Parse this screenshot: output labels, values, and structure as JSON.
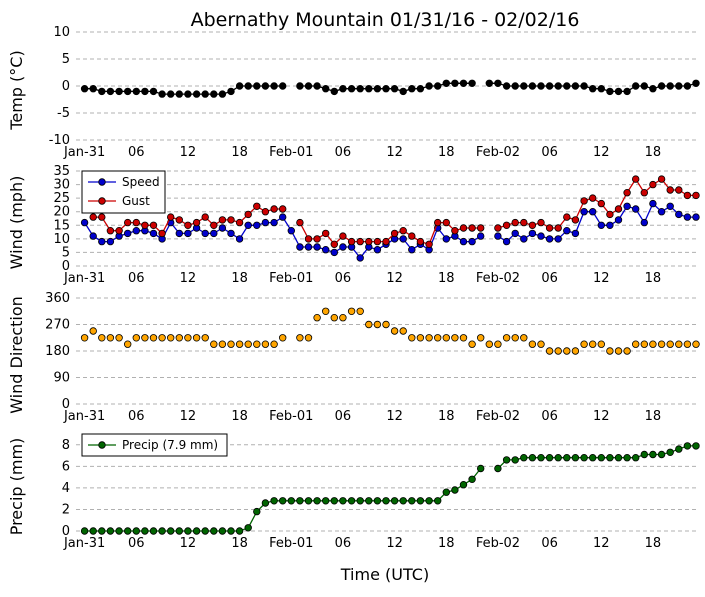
{
  "figure": {
    "title": "Abernathy Mountain 01/31/16 - 02/02/16",
    "xlabel": "Time (UTC)"
  },
  "chart_data": [
    {
      "type": "line",
      "ylabel": "Temp (°C)",
      "ylim": [
        -10,
        10
      ],
      "yticks": [
        -10,
        -5,
        0,
        5,
        10
      ],
      "xlim": [
        -1,
        71
      ],
      "xticks": [
        0,
        6,
        12,
        18,
        24,
        30,
        36,
        42,
        48,
        54,
        60,
        66
      ],
      "xtick_labels": [
        "Jan-31",
        "06",
        "12",
        "18",
        "Feb-01",
        "06",
        "12",
        "18",
        "Feb-02",
        "06",
        "12",
        "18"
      ],
      "grid": "horizontal dashed",
      "series": [
        {
          "color": "#000000",
          "x": [
            0,
            1,
            2,
            3,
            4,
            5,
            6,
            7,
            8,
            9,
            10,
            11,
            12,
            13,
            14,
            15,
            16,
            17,
            18,
            19,
            20,
            21,
            22,
            23,
            24,
            25,
            26,
            27,
            28,
            29,
            30,
            31,
            32,
            33,
            34,
            35,
            36,
            37,
            38,
            39,
            40,
            41,
            42,
            43,
            44,
            45,
            46,
            47,
            48,
            49,
            50,
            51,
            52,
            53,
            54,
            55,
            56,
            57,
            58,
            59,
            60,
            61,
            62,
            63,
            64,
            65,
            66,
            67,
            68,
            69,
            70,
            71
          ],
          "values": [
            -0.5,
            -0.5,
            -1,
            -1,
            -1,
            -1,
            -1,
            -1,
            -1,
            -1.5,
            -1.5,
            -1.5,
            -1.5,
            -1.5,
            -1.5,
            -1.5,
            -1.5,
            -1,
            0,
            0,
            0,
            0,
            0,
            0,
            null,
            0,
            0,
            0,
            -0.5,
            -1,
            -0.5,
            -0.5,
            -0.5,
            -0.5,
            -0.5,
            -0.5,
            -0.5,
            -1,
            -0.5,
            -0.5,
            0,
            0,
            0.5,
            0.5,
            0.5,
            0.5,
            null,
            0.5,
            0.5,
            0,
            0,
            0,
            0,
            0,
            0,
            0,
            0,
            0,
            0,
            -0.5,
            -0.5,
            -1,
            -1,
            -1,
            0,
            0,
            -0.5,
            0,
            0,
            0,
            0,
            0.5
          ]
        }
      ]
    },
    {
      "type": "line",
      "ylabel": "Wind (mph)",
      "ylim": [
        0,
        35
      ],
      "yticks": [
        0,
        5,
        10,
        15,
        20,
        25,
        30,
        35
      ],
      "xlim": [
        -1,
        71
      ],
      "xticks": [
        0,
        6,
        12,
        18,
        24,
        30,
        36,
        42,
        48,
        54,
        60,
        66
      ],
      "xtick_labels": [
        "Jan-31",
        "06",
        "12",
        "18",
        "Feb-01",
        "06",
        "12",
        "18",
        "Feb-02",
        "06",
        "12",
        "18"
      ],
      "grid": "horizontal dashed",
      "legend": "top-left",
      "series": [
        {
          "name": "Speed",
          "color": "#0000cc",
          "x": [
            0,
            1,
            2,
            3,
            4,
            5,
            6,
            7,
            8,
            9,
            10,
            11,
            12,
            13,
            14,
            15,
            16,
            17,
            18,
            19,
            20,
            21,
            22,
            23,
            24,
            25,
            26,
            27,
            28,
            29,
            30,
            31,
            32,
            33,
            34,
            35,
            36,
            37,
            38,
            39,
            40,
            41,
            42,
            43,
            44,
            45,
            46,
            47,
            48,
            49,
            50,
            51,
            52,
            53,
            54,
            55,
            56,
            57,
            58,
            59,
            60,
            61,
            62,
            63,
            64,
            65,
            66,
            67,
            68,
            69,
            70,
            71
          ],
          "values": [
            16,
            11,
            9,
            9,
            11,
            12,
            13,
            13,
            12,
            10,
            16,
            12,
            12,
            14,
            12,
            12,
            14,
            12,
            10,
            15,
            15,
            16,
            16,
            18,
            13,
            7,
            7,
            7,
            6,
            5,
            7,
            7,
            3,
            7,
            6,
            8,
            10,
            10,
            6,
            8,
            6,
            14,
            10,
            11,
            9,
            9,
            11,
            null,
            11,
            9,
            12,
            10,
            12,
            11,
            10,
            10,
            13,
            12,
            20,
            20,
            15,
            15,
            17,
            22,
            21,
            16,
            23,
            20,
            22,
            19,
            18,
            18
          ]
        },
        {
          "name": "Gust",
          "color": "#cc0000",
          "x": [
            0,
            1,
            2,
            3,
            4,
            5,
            6,
            7,
            8,
            9,
            10,
            11,
            12,
            13,
            14,
            15,
            16,
            17,
            18,
            19,
            20,
            21,
            22,
            23,
            24,
            25,
            26,
            27,
            28,
            29,
            30,
            31,
            32,
            33,
            34,
            35,
            36,
            37,
            38,
            39,
            40,
            41,
            42,
            43,
            44,
            45,
            46,
            47,
            48,
            49,
            50,
            51,
            52,
            53,
            54,
            55,
            56,
            57,
            58,
            59,
            60,
            61,
            62,
            63,
            64,
            65,
            66,
            67,
            68,
            69,
            70,
            71
          ],
          "values": [
            null,
            18,
            18,
            13,
            13,
            16,
            16,
            15,
            15,
            12,
            18,
            17,
            15,
            16,
            18,
            15,
            17,
            17,
            16,
            19,
            22,
            20,
            21,
            21,
            null,
            16,
            10,
            10,
            12,
            8,
            11,
            9,
            9,
            9,
            9,
            9,
            12,
            13,
            11,
            9,
            8,
            16,
            16,
            13,
            14,
            14,
            14,
            null,
            14,
            15,
            16,
            16,
            15,
            16,
            14,
            14,
            18,
            17,
            24,
            25,
            23,
            19,
            21,
            27,
            32,
            27,
            30,
            32,
            28,
            28,
            26,
            26
          ]
        }
      ]
    },
    {
      "type": "scatter",
      "ylabel": "Wind Direction",
      "ylim": [
        0,
        360
      ],
      "yticks": [
        0,
        90,
        180,
        270,
        360
      ],
      "xlim": [
        -1,
        71
      ],
      "xticks": [
        0,
        6,
        12,
        18,
        24,
        30,
        36,
        42,
        48,
        54,
        60,
        66
      ],
      "xtick_labels": [
        "Jan-31",
        "06",
        "12",
        "18",
        "Feb-01",
        "06",
        "12",
        "18",
        "Feb-02",
        "06",
        "12",
        "18"
      ],
      "grid": "horizontal dashed",
      "series": [
        {
          "color": "#ffa500",
          "x": [
            0,
            1,
            2,
            3,
            4,
            5,
            6,
            7,
            8,
            9,
            10,
            11,
            12,
            13,
            14,
            15,
            16,
            17,
            18,
            19,
            20,
            21,
            22,
            23,
            24,
            25,
            26,
            27,
            28,
            29,
            30,
            31,
            32,
            33,
            34,
            35,
            36,
            37,
            38,
            39,
            40,
            41,
            42,
            43,
            44,
            45,
            46,
            47,
            48,
            49,
            50,
            51,
            52,
            53,
            54,
            55,
            56,
            57,
            58,
            59,
            60,
            61,
            62,
            63,
            64,
            65,
            66,
            67,
            68,
            69,
            70,
            71
          ],
          "values": [
            225,
            248,
            225,
            225,
            225,
            203,
            225,
            225,
            225,
            225,
            225,
            225,
            225,
            225,
            225,
            203,
            203,
            203,
            203,
            203,
            203,
            203,
            203,
            225,
            null,
            225,
            225,
            293,
            315,
            293,
            293,
            315,
            315,
            270,
            270,
            270,
            248,
            248,
            225,
            225,
            225,
            225,
            225,
            225,
            225,
            203,
            225,
            203,
            203,
            225,
            225,
            225,
            203,
            203,
            180,
            180,
            180,
            180,
            203,
            203,
            203,
            180,
            180,
            180,
            203,
            203,
            203,
            203,
            203,
            203,
            203,
            203
          ]
        }
      ]
    },
    {
      "type": "line",
      "ylabel": "Precip (mm)",
      "ylim": [
        0,
        9
      ],
      "yticks": [
        0,
        2,
        4,
        6,
        8
      ],
      "xlim": [
        -1,
        71
      ],
      "xticks": [
        0,
        6,
        12,
        18,
        24,
        30,
        36,
        42,
        48,
        54,
        60,
        66
      ],
      "xtick_labels": [
        "Jan-31",
        "06",
        "12",
        "18",
        "Feb-01",
        "06",
        "12",
        "18",
        "Feb-02",
        "06",
        "12",
        "18"
      ],
      "grid": "horizontal dashed",
      "legend": "top-left",
      "series": [
        {
          "name": "Precip (7.9 mm)",
          "color": "#006400",
          "x": [
            0,
            1,
            2,
            3,
            4,
            5,
            6,
            7,
            8,
            9,
            10,
            11,
            12,
            13,
            14,
            15,
            16,
            17,
            18,
            19,
            20,
            21,
            22,
            23,
            24,
            25,
            26,
            27,
            28,
            29,
            30,
            31,
            32,
            33,
            34,
            35,
            36,
            37,
            38,
            39,
            40,
            41,
            42,
            43,
            44,
            45,
            46,
            47,
            48,
            49,
            50,
            51,
            52,
            53,
            54,
            55,
            56,
            57,
            58,
            59,
            60,
            61,
            62,
            63,
            64,
            65,
            66,
            67,
            68,
            69,
            70,
            71
          ],
          "values": [
            0,
            0,
            0,
            0,
            0,
            0,
            0,
            0,
            0,
            0,
            0,
            0,
            0,
            0,
            0,
            0,
            0,
            0,
            0,
            0.3,
            1.8,
            2.6,
            2.8,
            2.8,
            2.8,
            2.8,
            2.8,
            2.8,
            2.8,
            2.8,
            2.8,
            2.8,
            2.8,
            2.8,
            2.8,
            2.8,
            2.8,
            2.8,
            2.8,
            2.8,
            2.8,
            2.8,
            3.6,
            3.8,
            4.3,
            4.8,
            5.8,
            null,
            5.8,
            6.6,
            6.6,
            6.8,
            6.8,
            6.8,
            6.8,
            6.8,
            6.8,
            6.8,
            6.8,
            6.8,
            6.8,
            6.8,
            6.8,
            6.8,
            6.8,
            7.1,
            7.1,
            7.1,
            7.3,
            7.6,
            7.9,
            7.9
          ]
        }
      ]
    }
  ]
}
